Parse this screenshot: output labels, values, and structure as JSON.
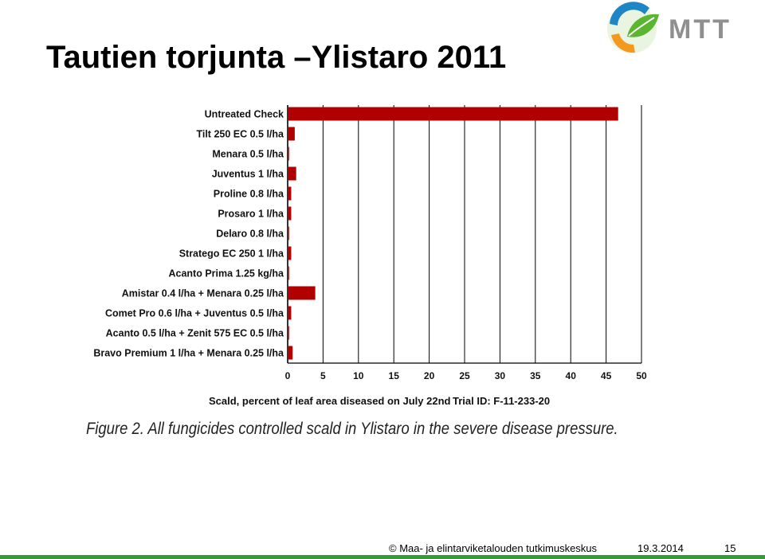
{
  "slide": {
    "title": "Tautien torjunta –Ylistaro 2011",
    "logo_text": "MTT",
    "caption": "Figure 2. All fungicides controlled scald in Ylistaro in the severe disease pressure."
  },
  "footer": {
    "copyright": "© Maa- ja elintarviketalouden tutkimuskeskus",
    "date": "19.3.2014",
    "page": "15"
  },
  "colors": {
    "bar": "#b00000",
    "grid": "#000000",
    "footer_bar": "#2f9e3a",
    "logo_green": "#5cb531",
    "logo_blue": "#1f86c6",
    "logo_orange": "#f39a1e",
    "logo_gray": "#8f8f8f"
  },
  "chart_data": {
    "type": "bar",
    "orientation": "horizontal",
    "categories": [
      "Untreated Check",
      "Tilt 250 EC 0.5 l/ha",
      "Menara 0.5 l/ha",
      "Juventus 1 l/ha",
      "Proline 0.8 l/ha",
      "Prosaro 1 l/ha",
      "Delaro 0.8 l/ha",
      "Stratego EC 250 1 l/ha",
      "Acanto Prima 1.25 kg/ha",
      "Amistar 0.4 l/ha + Menara 0.25 l/ha",
      "Comet Pro 0.6 l/ha + Juventus 0.5 l/ha",
      "Acanto 0.5 l/ha + Zenit 575 EC 0.5 l/ha",
      "Bravo Premium 1 l/ha + Menara 0.25 l/ha"
    ],
    "values": [
      46.7,
      1.0,
      0.2,
      1.2,
      0.5,
      0.5,
      0.2,
      0.5,
      0.2,
      3.9,
      0.5,
      0.2,
      0.7
    ],
    "xlim": [
      0,
      50
    ],
    "xticks": [
      0,
      5,
      10,
      15,
      20,
      25,
      30,
      35,
      40,
      45,
      50
    ],
    "xlabel": "Scald, percent of leaf area diseased on July 22nd",
    "trial_id": "Trial ID: F-11-233-20",
    "grid": "vertical"
  }
}
